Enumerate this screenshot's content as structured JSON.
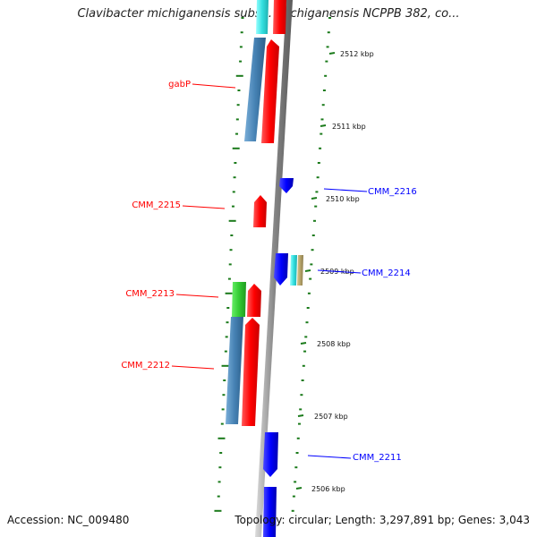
{
  "title": "Clavibacter michiganensis subsp. michiganensis NCPPB 382, co...",
  "footer": {
    "accession": "Accession: NC_009480",
    "stats": "Topology: circular; Length: 3,297,891 bp; Genes: 3,043"
  },
  "colors": {
    "forward": "#ff0000",
    "reverse": "#0000ff",
    "feature_blue": "#4682b4",
    "feature_green": "#33cc33",
    "feature_cyan": "#33e0e0",
    "feature_tan": "#b5a36a",
    "tick": "#1a7a1a",
    "backbone": "#888888"
  },
  "scale": {
    "unit": "kbp",
    "ticks": [
      "2512 kbp",
      "2511 kbp",
      "2510 kbp",
      "2509 kbp",
      "2508 kbp",
      "2507 kbp",
      "2506 kbp"
    ]
  },
  "genes": [
    {
      "name": "gabP",
      "strand": "forward"
    },
    {
      "name": "CMM_2216",
      "strand": "reverse"
    },
    {
      "name": "CMM_2215",
      "strand": "forward"
    },
    {
      "name": "CMM_2214",
      "strand": "reverse"
    },
    {
      "name": "CMM_2213",
      "strand": "forward"
    },
    {
      "name": "CMM_2212",
      "strand": "forward"
    },
    {
      "name": "CMM_2211",
      "strand": "reverse"
    }
  ]
}
